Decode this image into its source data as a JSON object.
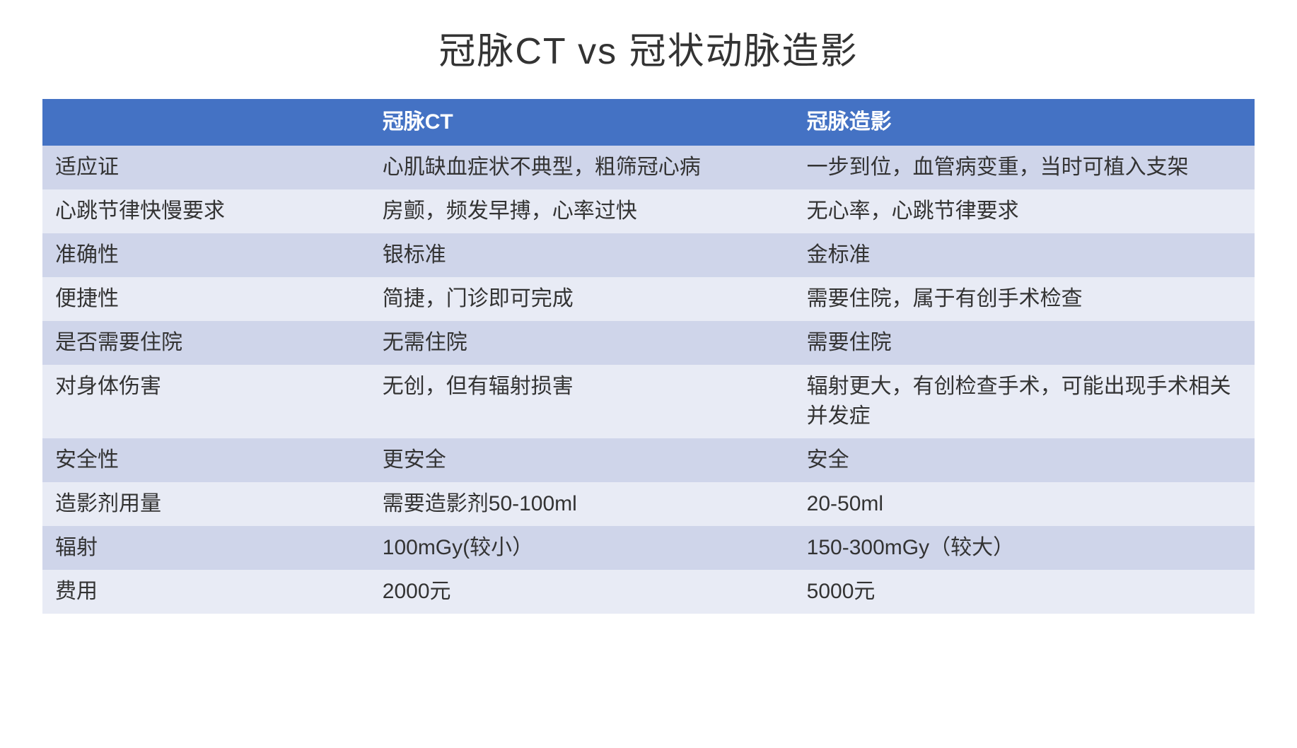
{
  "title": "冠脉CT vs 冠状动脉造影",
  "table": {
    "type": "table",
    "header_bg": "#4472c4",
    "header_text_color": "#ffffff",
    "row_odd_bg": "#cfd5ea",
    "row_even_bg": "#e8ebf5",
    "text_color": "#333333",
    "title_fontsize": 52,
    "cell_fontsize": 30,
    "columns": [
      {
        "label": "",
        "width": "27%"
      },
      {
        "label": "冠脉CT",
        "width": "35%"
      },
      {
        "label": "冠脉造影",
        "width": "38%"
      }
    ],
    "rows": [
      {
        "label": "适应证",
        "ct": "心肌缺血症状不典型，粗筛冠心病",
        "angio": "一步到位，血管病变重，当时可植入支架"
      },
      {
        "label": "心跳节律快慢要求",
        "ct": "房颤，频发早搏，心率过快",
        "angio": "无心率，心跳节律要求"
      },
      {
        "label": "准确性",
        "ct": "银标准",
        "angio": "金标准"
      },
      {
        "label": "便捷性",
        "ct": "简捷，门诊即可完成",
        "angio": "需要住院，属于有创手术检查"
      },
      {
        "label": "是否需要住院",
        "ct": "无需住院",
        "angio": "需要住院"
      },
      {
        "label": "对身体伤害",
        "ct": "无创，但有辐射损害",
        "angio": "辐射更大，有创检查手术，可能出现手术相关并发症"
      },
      {
        "label": "安全性",
        "ct": "更安全",
        "angio": "安全"
      },
      {
        "label": "造影剂用量",
        "ct": "需要造影剂50-100ml",
        "angio": "20-50ml"
      },
      {
        "label": "辐射",
        "ct": "100mGy(较小）",
        "angio": "150-300mGy（较大）"
      },
      {
        "label": "费用",
        "ct": "2000元",
        "angio": "5000元"
      }
    ]
  }
}
